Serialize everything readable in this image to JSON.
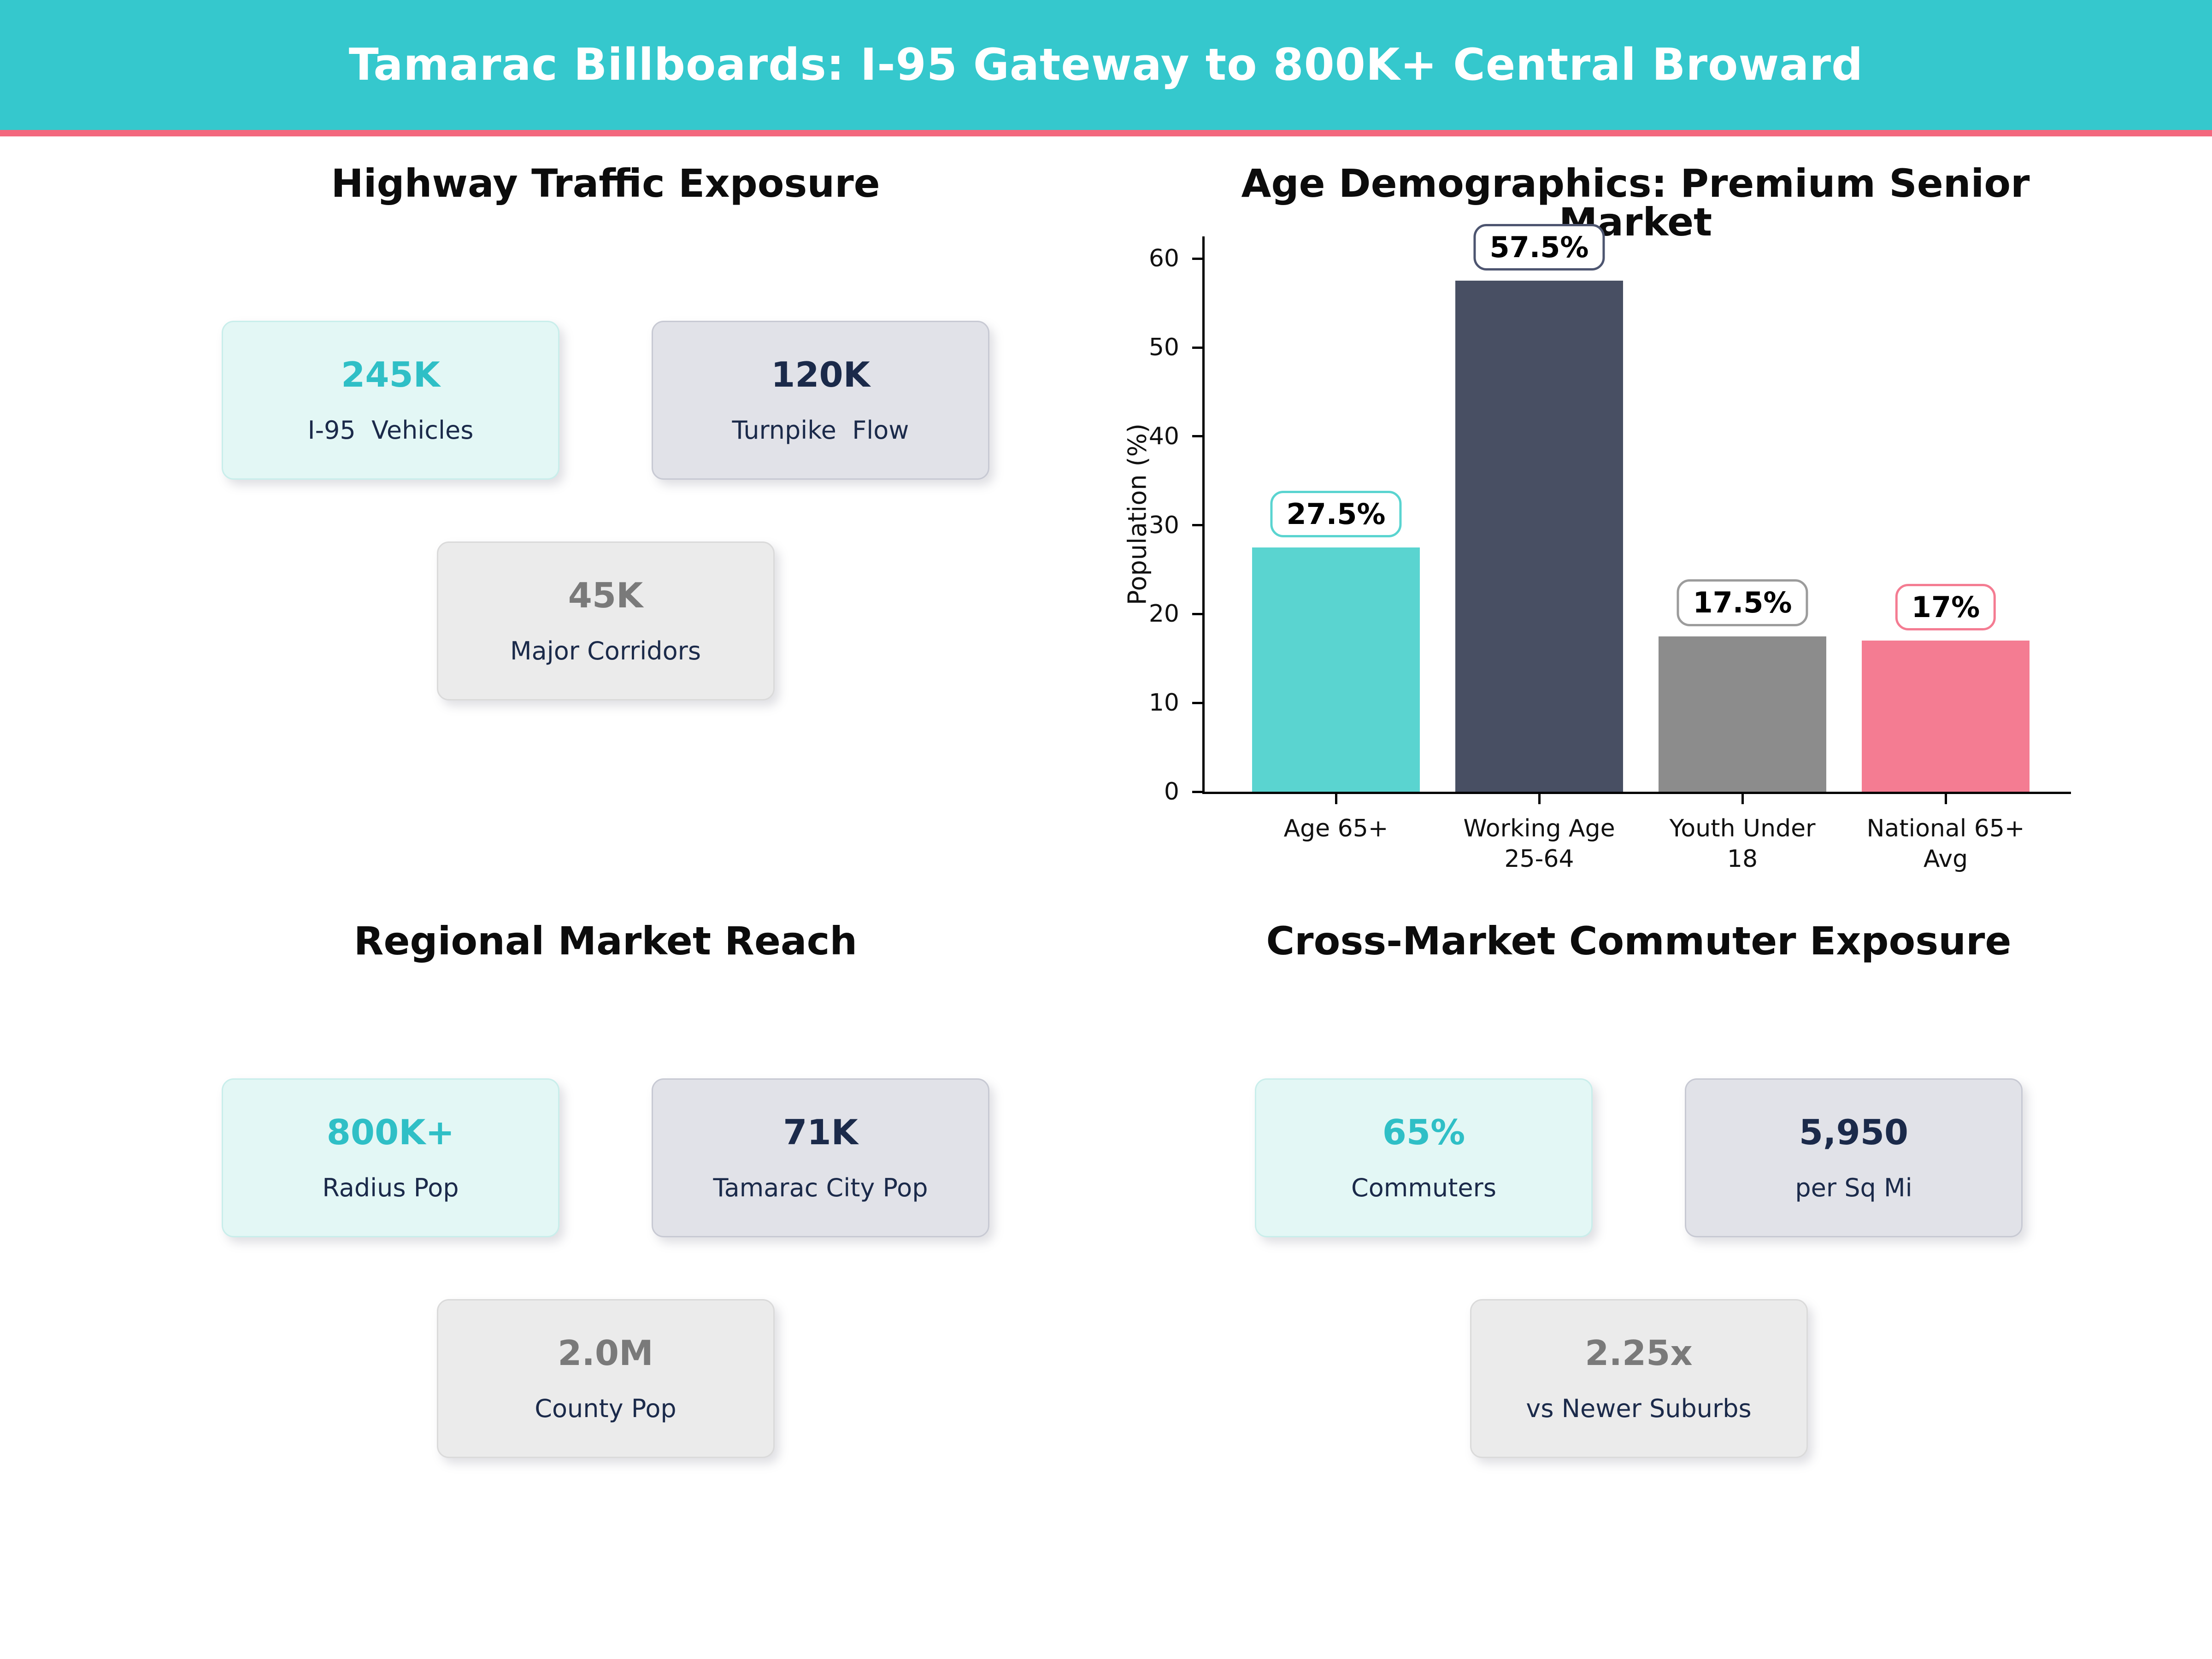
{
  "header": {
    "title": "Tamarac Billboards: I-95 Gateway to 800K+ Central Broward"
  },
  "theme": {
    "banner_bg": "#35c8cd",
    "banner_accent": "#f3687e",
    "teal": "#2fbfc6",
    "navy": "#1b2a4a",
    "gray": "#7a7a7a",
    "card_teal_bg": "#e3f7f5",
    "card_teal_border": "#c9eeeb",
    "card_slate_bg": "#e1e2e8",
    "card_slate_border": "#c7c9d3",
    "card_gray_bg": "#ebebeb",
    "card_gray_border": "#dadada"
  },
  "sections": {
    "traffic": {
      "title": "Highway Traffic Exposure",
      "cards": [
        {
          "value": "245K",
          "label": "I-95  Vehicles"
        },
        {
          "value": "120K",
          "label": "Turnpike  Flow"
        },
        {
          "value": "45K",
          "label": "Major Corridors"
        }
      ]
    },
    "demographics": {
      "title": "Age Demographics: Premium Senior Market"
    },
    "regional": {
      "title": "Regional Market Reach",
      "cards": [
        {
          "value": "800K+",
          "label": "Radius Pop"
        },
        {
          "value": "71K",
          "label": "Tamarac City Pop"
        },
        {
          "value": "2.0M",
          "label": "County Pop"
        }
      ]
    },
    "commuter": {
      "title": "Cross-Market Commuter Exposure",
      "cards": [
        {
          "value": "65%",
          "label": "Commuters"
        },
        {
          "value": "5,950",
          "label": "per Sq Mi"
        },
        {
          "value": "2.25x",
          "label": "vs Newer Suburbs"
        }
      ]
    }
  },
  "chart_data": {
    "type": "bar",
    "title": "Age Demographics: Premium Senior Market",
    "categories": [
      "Age 65+",
      "Working Age\n25-64",
      "Youth Under\n18",
      "National 65+\nAvg"
    ],
    "values": [
      27.5,
      57.5,
      17.5,
      17
    ],
    "value_labels": [
      "27.5%",
      "57.5%",
      "17.5%",
      "17%"
    ],
    "bar_colors": [
      "#5ad4d0",
      "#484f63",
      "#8c8c8c",
      "#f47c92"
    ],
    "annotation_border_colors": [
      "#5ad4d0",
      "#4d5570",
      "#9c9c9c",
      "#f47c92"
    ],
    "xlabel": "",
    "ylabel": "Population (%)",
    "yticks": [
      0,
      10,
      20,
      30,
      40,
      50,
      60
    ],
    "ylim": [
      0,
      62.5
    ],
    "grid": false,
    "legend": null
  }
}
